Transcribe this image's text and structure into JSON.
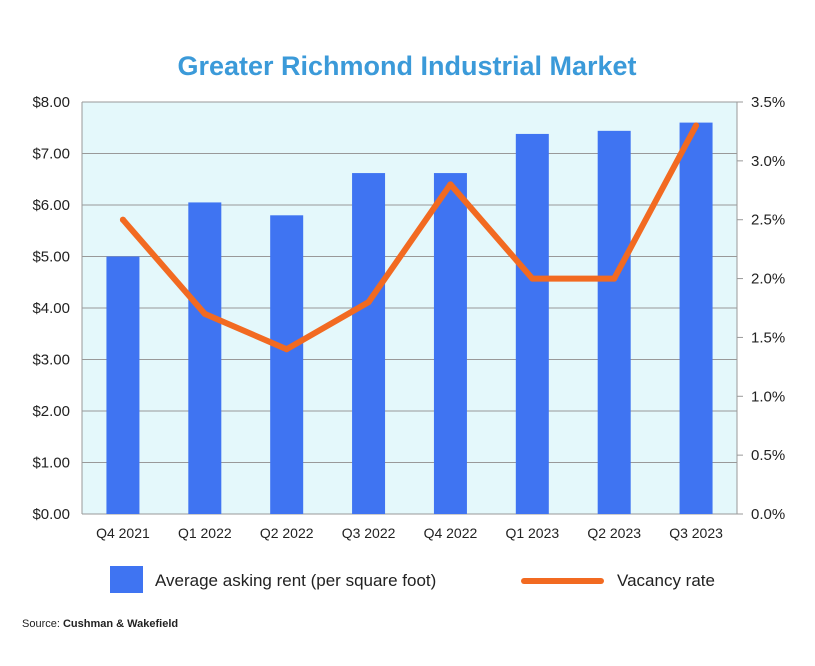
{
  "chart_data": {
    "type": "bar+line",
    "title": "Greater Richmond Industrial Market",
    "categories": [
      "Q4 2021",
      "Q1 2022",
      "Q2 2022",
      "Q3 2022",
      "Q4 2022",
      "Q1 2023",
      "Q2 2023",
      "Q3 2023"
    ],
    "series": [
      {
        "name": "Average asking rent (per square foot)",
        "type": "bar",
        "axis": "left",
        "values": [
          5.0,
          6.05,
          5.8,
          6.62,
          6.62,
          7.38,
          7.44,
          7.6
        ]
      },
      {
        "name": "Vacancy rate",
        "type": "line",
        "axis": "right",
        "values": [
          2.5,
          1.7,
          1.4,
          1.8,
          2.8,
          2.0,
          2.0,
          3.3
        ]
      }
    ],
    "y_left": {
      "ylim": [
        0,
        8
      ],
      "ticks": [
        "$0.00",
        "$1.00",
        "$2.00",
        "$3.00",
        "$4.00",
        "$5.00",
        "$6.00",
        "$7.00",
        "$8.00"
      ]
    },
    "y_right": {
      "ylim": [
        0,
        3.5
      ],
      "ticks": [
        "0.0%",
        "0.5%",
        "1.0%",
        "1.5%",
        "2.0%",
        "2.5%",
        "3.0%",
        "3.5%"
      ]
    },
    "grid": true,
    "legend_position": "bottom"
  },
  "colors": {
    "title": "#3b9ad9",
    "bar": "#3f74f2",
    "line": "#f26a21",
    "plot_bg": "#e4f8fb",
    "grid": "#999999"
  },
  "source": {
    "prefix": "Source:",
    "name": "Cushman & Wakefield"
  }
}
